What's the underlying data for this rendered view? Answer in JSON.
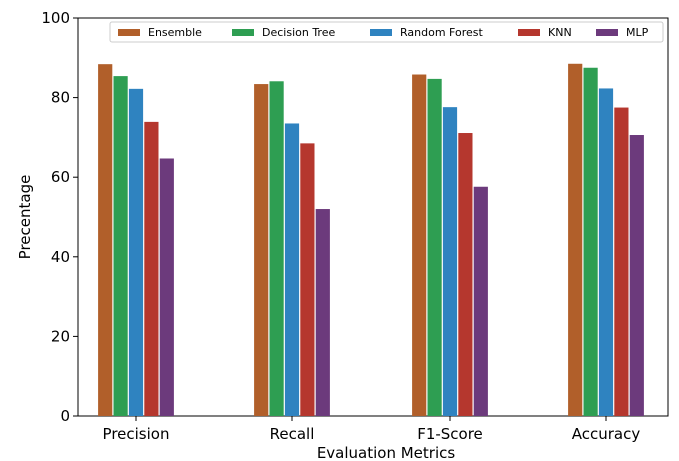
{
  "chart_data": {
    "type": "bar",
    "title": "",
    "xlabel": "Evaluation Metrics",
    "ylabel": "Precentage",
    "ylim": [
      0,
      100
    ],
    "yticks": [
      0,
      20,
      40,
      60,
      80,
      100
    ],
    "grid": false,
    "legend_position": "top",
    "categories": [
      "Precision",
      "Recall",
      "F1-Score",
      "Accuracy"
    ],
    "series": [
      {
        "name": "Ensemble",
        "color": "#b15f2a",
        "values": [
          88.4,
          83.4,
          85.8,
          88.5
        ]
      },
      {
        "name": "Decision Tree",
        "color": "#2e9e52",
        "values": [
          85.4,
          84.1,
          84.7,
          87.5
        ]
      },
      {
        "name": "Random Forest",
        "color": "#2f83c0",
        "values": [
          82.2,
          73.5,
          77.6,
          82.3
        ]
      },
      {
        "name": "KNN",
        "color": "#b5372e",
        "values": [
          73.9,
          68.5,
          71.1,
          77.5
        ]
      },
      {
        "name": "MLP",
        "color": "#6c3a7c",
        "values": [
          64.7,
          52.0,
          57.6,
          70.6
        ]
      }
    ]
  }
}
